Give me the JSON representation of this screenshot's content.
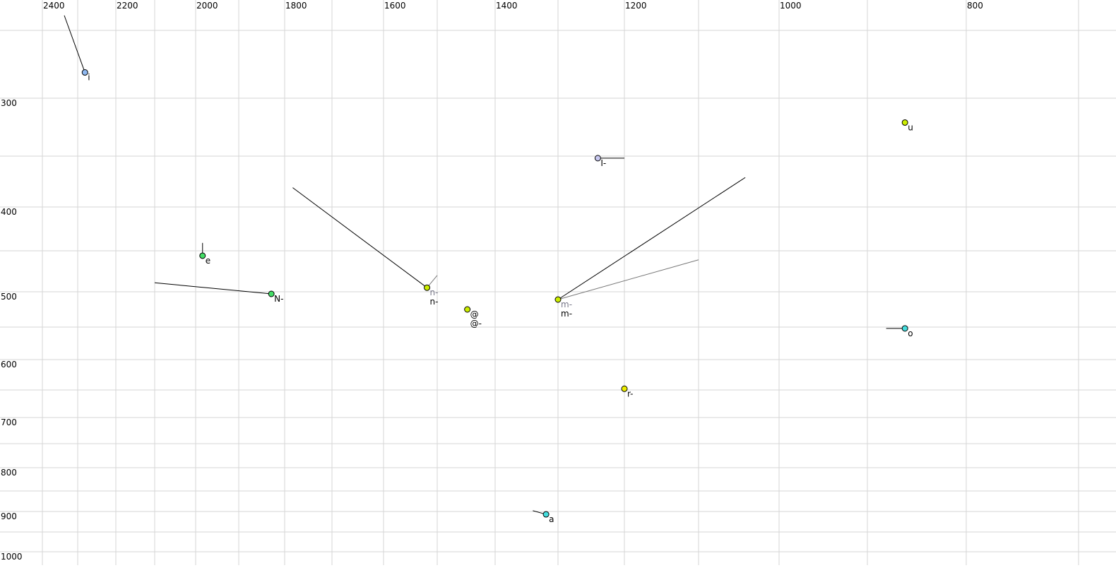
{
  "chart_data": {
    "type": "scatter",
    "title": "",
    "xlabel": "",
    "ylabel": "",
    "x_axis": {
      "reversed": true,
      "ticks_labeled": [
        2400,
        2200,
        2000,
        1800,
        1600,
        1400,
        1200,
        1000,
        800
      ],
      "grid_step": 100,
      "range": [
        2400,
        700
      ]
    },
    "y_axis": {
      "reversed": true,
      "ticks_labeled": [
        300,
        400,
        500,
        600,
        700,
        800,
        900,
        1000
      ],
      "grid_step": 50,
      "range": [
        250,
        1000
      ]
    },
    "grid": true,
    "points": [
      {
        "labels": [
          {
            "text": "i",
            "color": "#000000"
          }
        ],
        "f2": 2281,
        "f1": 281,
        "color": "#8fb8f0",
        "trajectories": [
          {
            "from": [
              2338,
              239
            ],
            "color": "#000000"
          }
        ]
      },
      {
        "labels": [
          {
            "text": "u",
            "color": "#000000"
          }
        ],
        "f2": 862,
        "f1": 321,
        "color": "#ccee00",
        "trajectories": []
      },
      {
        "labels": [
          {
            "text": "I-",
            "color": "#000000"
          }
        ],
        "f2": 1240,
        "f1": 352,
        "color": "#c8c8f0",
        "trajectories": [
          {
            "from": [
              1200,
              352
            ],
            "color": "#000000"
          }
        ]
      },
      {
        "labels": [
          {
            "text": "e",
            "color": "#000000"
          }
        ],
        "f2": 1984,
        "f1": 456,
        "color": "#44dd66",
        "trajectories": [
          {
            "from": [
              1984,
              441
            ],
            "color": "#000000"
          }
        ]
      },
      {
        "labels": [
          {
            "text": "N-",
            "color": "#000000"
          }
        ],
        "f2": 1829,
        "f1": 503,
        "color": "#44dd66",
        "trajectories": [
          {
            "from": [
              2100,
              489
            ],
            "color": "#000000"
          }
        ]
      },
      {
        "labels": [
          {
            "text": "n-",
            "color": "#777788"
          },
          {
            "text": "n-",
            "color": "#000000"
          }
        ],
        "f2": 1519,
        "f1": 495,
        "color": "#ccee00",
        "trajectories": [
          {
            "from": [
              1783,
              381
            ],
            "color": "#000000"
          },
          {
            "from": [
              1500,
              480
            ],
            "color": "#777777"
          }
        ]
      },
      {
        "labels": [
          {
            "text": "@",
            "color": "#000000"
          },
          {
            "text": "@-",
            "color": "#000000"
          }
        ],
        "f2": 1448,
        "f1": 525,
        "color": "#ccee00",
        "trajectories": []
      },
      {
        "labels": [
          {
            "text": "m-",
            "color": "#777788"
          },
          {
            "text": "m-",
            "color": "#000000"
          }
        ],
        "f2": 1300,
        "f1": 511,
        "color": "#ccee00",
        "trajectories": [
          {
            "from": [
              1042,
              371
            ],
            "color": "#000000"
          },
          {
            "from": [
              1100,
              461
            ],
            "color": "#777777"
          }
        ]
      },
      {
        "labels": [
          {
            "text": "o",
            "color": "#000000"
          }
        ],
        "f2": 862,
        "f1": 552,
        "color": "#44dddd",
        "trajectories": [
          {
            "from": [
              881,
              552
            ],
            "color": "#000000"
          }
        ]
      },
      {
        "labels": [
          {
            "text": "r-",
            "color": "#000000"
          }
        ],
        "f2": 1200,
        "f1": 648,
        "color": "#eeee00",
        "trajectories": [
          {
            "from": [
              1200,
              644
            ],
            "color": "#000000"
          }
        ]
      },
      {
        "labels": [
          {
            "text": "a",
            "color": "#000000"
          }
        ],
        "f2": 1319,
        "f1": 907,
        "color": "#44dddd",
        "trajectories": [
          {
            "from": [
              1340,
              898
            ],
            "color": "#000000"
          }
        ]
      }
    ]
  }
}
